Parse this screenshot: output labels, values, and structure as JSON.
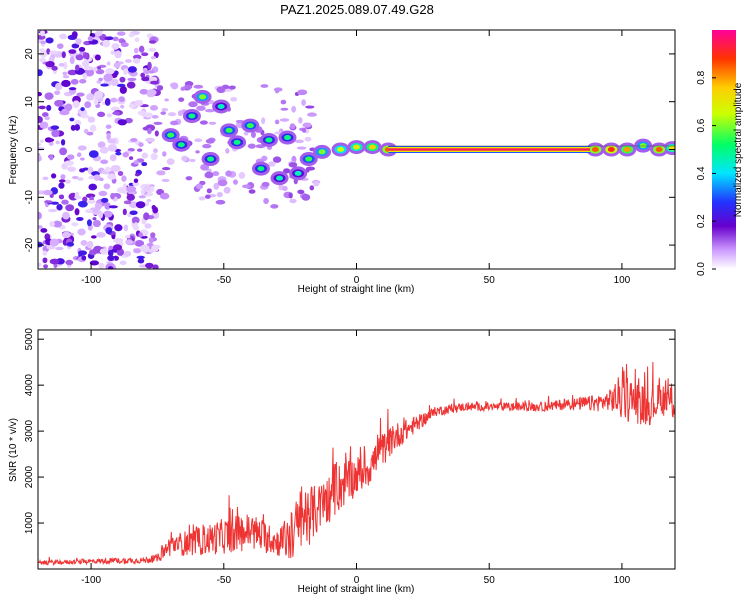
{
  "figure": {
    "title": "PAZ1.2025.089.07.49.G28"
  },
  "chart_data": [
    {
      "type": "heatmap",
      "title": "PAZ1.2025.089.07.49.G28",
      "xlabel": "Height of straight line (km)",
      "ylabel": "Frequency (Hz)",
      "xlim": [
        -120,
        120
      ],
      "ylim": [
        -25,
        25
      ],
      "xticks": [
        -100,
        -50,
        0,
        50,
        100
      ],
      "yticks": [
        -20,
        -10,
        0,
        10,
        20
      ],
      "colorbar": {
        "label": "Normalized spectral amplitude",
        "range": [
          0,
          1
        ],
        "ticks": [
          "0.0",
          "0.2",
          "0.4",
          "0.6",
          "0.8"
        ],
        "colors": [
          "#ffffff",
          "#cc99ff",
          "#6600cc",
          "#2233ff",
          "#00e5ff",
          "#00ff66",
          "#ccff00",
          "#ffcc00",
          "#ff3300",
          "#ff0099"
        ]
      },
      "ridge": [
        {
          "x": -70,
          "f": 3,
          "a": 0.55
        },
        {
          "x": -66,
          "f": 1,
          "a": 0.5
        },
        {
          "x": -62,
          "f": 7,
          "a": 0.5
        },
        {
          "x": -58,
          "f": 11,
          "a": 0.6
        },
        {
          "x": -55,
          "f": -2,
          "a": 0.5
        },
        {
          "x": -51,
          "f": 9,
          "a": 0.45
        },
        {
          "x": -48,
          "f": 4,
          "a": 0.55
        },
        {
          "x": -45,
          "f": 1.5,
          "a": 0.5
        },
        {
          "x": -40,
          "f": 5,
          "a": 0.55
        },
        {
          "x": -36,
          "f": -4,
          "a": 0.5
        },
        {
          "x": -33,
          "f": 2,
          "a": 0.5
        },
        {
          "x": -29,
          "f": -6,
          "a": 0.45
        },
        {
          "x": -26,
          "f": 2.5,
          "a": 0.5
        },
        {
          "x": -22,
          "f": -5,
          "a": 0.45
        },
        {
          "x": -18,
          "f": -2,
          "a": 0.55
        },
        {
          "x": -13,
          "f": -0.5,
          "a": 0.6
        },
        {
          "x": -6,
          "f": 0,
          "a": 0.65
        },
        {
          "x": 0,
          "f": 0.5,
          "a": 0.7
        },
        {
          "x": 6,
          "f": 0.5,
          "a": 0.75
        },
        {
          "x": 12,
          "f": 0,
          "a": 0.85
        }
      ],
      "main_line": {
        "x_start": 12,
        "x_end": 88,
        "f": 0,
        "a": 0.95
      },
      "tail": [
        {
          "x": 90,
          "f": 0,
          "a": 0.85
        },
        {
          "x": 96,
          "f": 0,
          "a": 0.9
        },
        {
          "x": 102,
          "f": 0,
          "a": 0.8
        },
        {
          "x": 108,
          "f": 0.8,
          "a": 0.6
        },
        {
          "x": 114,
          "f": 0,
          "a": 0.85
        },
        {
          "x": 119,
          "f": 0.3,
          "a": 0.7
        }
      ],
      "noise_region": {
        "x_min": -120,
        "x_max": -75
      }
    },
    {
      "type": "line",
      "xlabel": "Height of straight line (km)",
      "ylabel": "SNR (10 * v/v)",
      "xlim": [
        -120,
        120
      ],
      "ylim": [
        0,
        5200
      ],
      "xticks": [
        -100,
        -50,
        0,
        50,
        100
      ],
      "yticks": [
        1000,
        2000,
        3000,
        4000,
        5000
      ],
      "color": "#ee3333",
      "series": [
        {
          "envelope": {
            "x": [
              -120,
              -100,
              -80,
              -75,
              -70,
              -60,
              -50,
              -40,
              -30,
              -25,
              -20,
              -15,
              -10,
              -5,
              0,
              5,
              10,
              15,
              20,
              25,
              30,
              40,
              50,
              60,
              70,
              80,
              85,
              90,
              95,
              100,
              105,
              110,
              115,
              120
            ],
            "mean": [
              120,
              150,
              170,
              200,
              450,
              500,
              600,
              700,
              500,
              500,
              900,
              1100,
              1400,
              1700,
              1900,
              2100,
              2500,
              2800,
              3000,
              3200,
              3400,
              3500,
              3500,
              3500,
              3500,
              3550,
              3550,
              3550,
              3600,
              3600,
              3500,
              3400,
              3600,
              3500
            ],
            "spread": [
              80,
              90,
              110,
              150,
              400,
              500,
              650,
              700,
              500,
              900,
              1300,
              900,
              900,
              900,
              700,
              700,
              600,
              500,
              350,
              250,
              180,
              150,
              150,
              160,
              170,
              200,
              250,
              300,
              350,
              900,
              800,
              700,
              600,
              700
            ]
          }
        }
      ]
    }
  ]
}
